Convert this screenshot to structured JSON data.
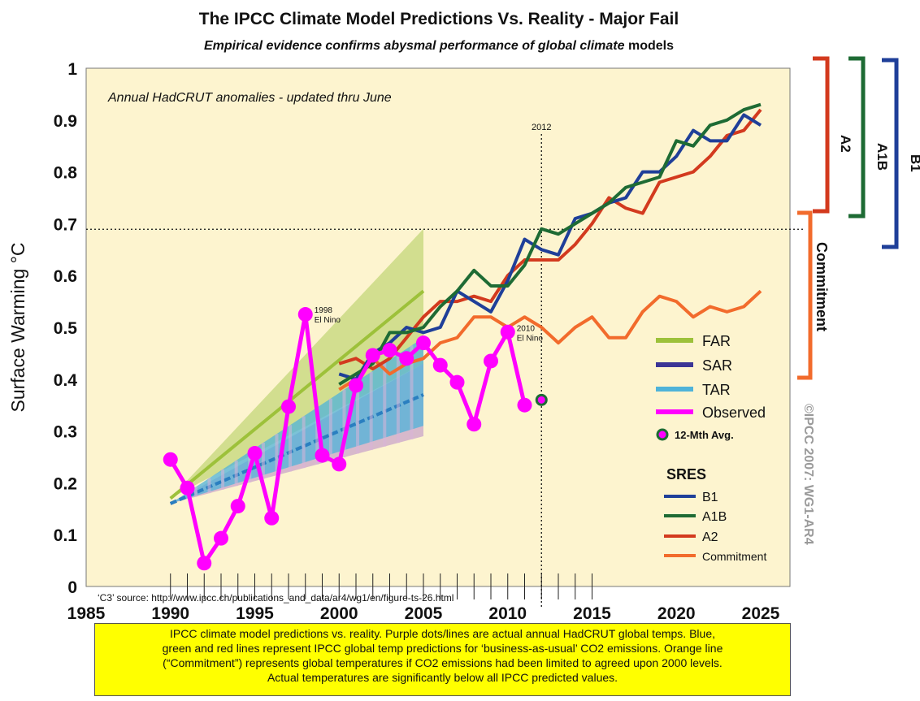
{
  "chart_data": {
    "type": "line",
    "title": "The IPCC Climate Model Predictions Vs. Reality - Major Fail",
    "subtitle_italic": "Empirical evidence confirms abysmal performance of global climate",
    "subtitle_rest": "models",
    "ylabel": "Surface Warming °C",
    "xlim": [
      1985,
      2027
    ],
    "ylim": [
      0,
      1
    ],
    "x_ticks": [
      "1985",
      "1990",
      "1995",
      "2000",
      "2005",
      "2010",
      "2015",
      "2020",
      "2025"
    ],
    "y_ticks": [
      "0",
      "0.1",
      "0.2",
      "0.3",
      "0.4",
      "0.5",
      "0.6",
      "0.7",
      "0.8",
      "0.9",
      "1"
    ],
    "inner_label": "Annual HadCRUT anomalies - updated thru June",
    "source_note": "‘C3’ source: http://www.ipcc.ch/publications_and_data/ar4/wg1/en/figure-ts-26.html",
    "watermark": "©IPCC  2007: WG1-AR4",
    "reference_lines": {
      "year_label": "2012",
      "year": 2012,
      "value": 0.69
    },
    "annotations": [
      {
        "text_1": "1998",
        "text_2": "El Nino",
        "x": 1998,
        "y": 0.525
      },
      {
        "text_1": "2010",
        "text_2": "El Nino",
        "x": 2010,
        "y": 0.49
      }
    ],
    "projection_bands": [
      {
        "name": "FAR",
        "color": "#c3d77a",
        "upper": [
          [
            1990,
            0.17
          ],
          [
            2005,
            0.69
          ]
        ],
        "lower": [
          [
            1990,
            0.17
          ],
          [
            2005,
            0.43
          ]
        ],
        "center": [
          [
            1990,
            0.17
          ],
          [
            2005,
            0.57
          ]
        ],
        "center_color": "#9dc13a"
      },
      {
        "name": "SAR",
        "color": "#c9a6c9",
        "upper": [
          [
            1990,
            0.16
          ],
          [
            2005,
            0.43
          ]
        ],
        "lower": [
          [
            1990,
            0.16
          ],
          [
            2005,
            0.29
          ]
        ],
        "center": [
          [
            1990,
            0.16
          ],
          [
            2005,
            0.37
          ]
        ],
        "center_color": "#3b3596"
      },
      {
        "name": "TAR",
        "color": "#4fb3d9",
        "upper": [
          [
            1990,
            0.16
          ],
          [
            2005,
            0.48
          ]
        ],
        "lower": [
          [
            1990,
            0.16
          ],
          [
            2005,
            0.31
          ]
        ],
        "center": [
          [
            1990,
            0.16
          ],
          [
            2005,
            0.37
          ]
        ],
        "center_color": "#2a7fc0"
      }
    ],
    "series": [
      {
        "name": "B1",
        "color": "#1f3f99",
        "x": [
          2000,
          2001,
          2002,
          2003,
          2004,
          2005,
          2006,
          2007,
          2008,
          2009,
          2010,
          2011,
          2012,
          2013,
          2014,
          2015,
          2016,
          2017,
          2018,
          2019,
          2020,
          2021,
          2022,
          2023,
          2024,
          2025
        ],
        "values": [
          0.41,
          0.4,
          0.45,
          0.47,
          0.5,
          0.49,
          0.5,
          0.57,
          0.55,
          0.53,
          0.59,
          0.67,
          0.65,
          0.64,
          0.71,
          0.72,
          0.74,
          0.75,
          0.8,
          0.8,
          0.83,
          0.88,
          0.86,
          0.86,
          0.91,
          0.89
        ]
      },
      {
        "name": "A1B",
        "color": "#1e6b34",
        "x": [
          2000,
          2001,
          2002,
          2003,
          2004,
          2005,
          2006,
          2007,
          2008,
          2009,
          2010,
          2011,
          2012,
          2013,
          2014,
          2015,
          2016,
          2017,
          2018,
          2019,
          2020,
          2021,
          2022,
          2023,
          2024,
          2025
        ],
        "values": [
          0.39,
          0.41,
          0.43,
          0.49,
          0.49,
          0.5,
          0.54,
          0.57,
          0.61,
          0.58,
          0.58,
          0.62,
          0.69,
          0.68,
          0.7,
          0.72,
          0.74,
          0.77,
          0.78,
          0.79,
          0.86,
          0.85,
          0.89,
          0.9,
          0.92,
          0.93
        ]
      },
      {
        "name": "A2",
        "color": "#d33a1e",
        "x": [
          2000,
          2001,
          2002,
          2003,
          2004,
          2005,
          2006,
          2007,
          2008,
          2009,
          2010,
          2011,
          2012,
          2013,
          2014,
          2015,
          2016,
          2017,
          2018,
          2019,
          2020,
          2021,
          2022,
          2023,
          2024,
          2025
        ],
        "values": [
          0.43,
          0.44,
          0.42,
          0.44,
          0.48,
          0.52,
          0.55,
          0.55,
          0.56,
          0.55,
          0.6,
          0.63,
          0.63,
          0.63,
          0.66,
          0.7,
          0.75,
          0.73,
          0.72,
          0.78,
          0.79,
          0.8,
          0.83,
          0.87,
          0.88,
          0.92
        ]
      },
      {
        "name": "Commitment",
        "color": "#f26b2c",
        "x": [
          2000,
          2001,
          2002,
          2003,
          2004,
          2005,
          2006,
          2007,
          2008,
          2009,
          2010,
          2011,
          2012,
          2013,
          2014,
          2015,
          2016,
          2017,
          2018,
          2019,
          2020,
          2021,
          2022,
          2023,
          2024,
          2025
        ],
        "values": [
          0.38,
          0.4,
          0.44,
          0.41,
          0.43,
          0.44,
          0.47,
          0.48,
          0.52,
          0.52,
          0.5,
          0.52,
          0.5,
          0.47,
          0.5,
          0.52,
          0.48,
          0.48,
          0.53,
          0.56,
          0.55,
          0.52,
          0.54,
          0.53,
          0.54,
          0.57
        ]
      },
      {
        "name": "Observed",
        "color": "#ff00ff",
        "x": [
          1990,
          1991,
          1992,
          1993,
          1994,
          1995,
          1996,
          1997,
          1998,
          1999,
          2000,
          2001,
          2002,
          2003,
          2004,
          2005,
          2006,
          2007,
          2008,
          2009,
          2010,
          2011
        ],
        "values": [
          0.245,
          0.19,
          0.045,
          0.093,
          0.155,
          0.257,
          0.132,
          0.347,
          0.525,
          0.253,
          0.236,
          0.388,
          0.446,
          0.456,
          0.44,
          0.47,
          0.427,
          0.394,
          0.313,
          0.435,
          0.491,
          0.35
        ]
      },
      {
        "name": "12-Mth Avg.",
        "color": "#1e6b34",
        "x": [
          2012
        ],
        "values": [
          0.36
        ]
      }
    ],
    "legend": {
      "position": "right-inside",
      "items": [
        "FAR",
        "SAR",
        "TAR",
        "Observed",
        "12-Mth Avg."
      ],
      "sres_title": "SRES",
      "sres_items": [
        "B1",
        "A1B",
        "A2",
        "Commitment"
      ]
    },
    "brackets": [
      {
        "label": "A2",
        "color": "#d33a1e",
        "range": [
          0.72,
          1.0
        ]
      },
      {
        "label": "A1B",
        "color": "#1e6b34",
        "range": [
          0.71,
          1.0
        ]
      },
      {
        "label": "B1",
        "color": "#1f3f99",
        "range": [
          0.65,
          1.0
        ]
      },
      {
        "label": "Commitment",
        "color": "#f26b2c",
        "range": [
          0.4,
          0.71
        ]
      }
    ]
  },
  "caption": {
    "line1": "IPCC climate model predictions vs. reality. Purple dots/lines are actual annual HadCRUT global temps. Blue,",
    "line2": "green and red lines represent IPCC global temp predictions for ‘business-as-usual’ CO2 emissions. Orange line",
    "line3": "(“Commitment”) represents global temperatures if CO2 emissions had been limited to agreed upon 2000 levels.",
    "line4": "Actual temperatures are significantly below all IPCC predicted values."
  }
}
